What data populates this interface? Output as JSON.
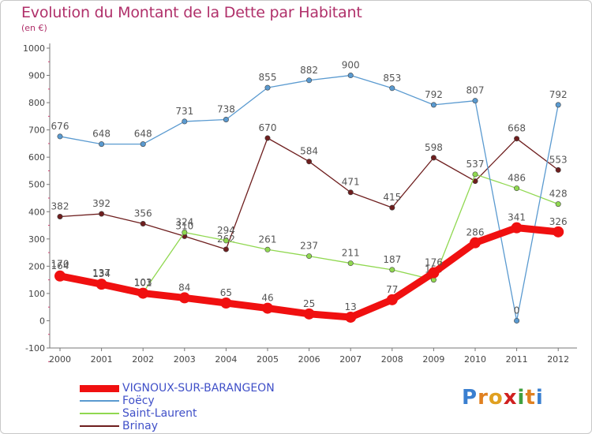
{
  "title": "Evolution du Montant de la Dette par Habitant",
  "subtitle": "(en €)",
  "logo_text": "Proxiti",
  "chart_data": {
    "type": "line",
    "title": "Evolution du Montant de la Dette par Habitant",
    "subtitle": "(en €)",
    "categories": [
      "2000",
      "2001",
      "2002",
      "2003",
      "2004",
      "2005",
      "2006",
      "2007",
      "2008",
      "2009",
      "2010",
      "2011",
      "2012"
    ],
    "ylim": [
      -100,
      1000
    ],
    "yticks": [
      -100,
      0,
      100,
      200,
      300,
      400,
      500,
      600,
      700,
      800,
      900,
      1000
    ],
    "grid": false,
    "legend": "bottom-left",
    "series": [
      {
        "name": "Brinay",
        "color": "#6e1e1e",
        "values": [
          382,
          392,
          356,
          310,
          262,
          670,
          584,
          471,
          415,
          598,
          512,
          668,
          553
        ],
        "labels": [
          "382",
          "392",
          "356",
          "310",
          "262",
          "670",
          "584",
          "471",
          "415",
          "598",
          "",
          "668",
          "553"
        ]
      },
      {
        "name": "Saint-Laurent",
        "color": "#90d850",
        "values": [
          170,
          137,
          103,
          324,
          294,
          261,
          237,
          211,
          187,
          150,
          537,
          486,
          428
        ],
        "labels": [
          "170",
          "137",
          "103",
          "324",
          "294",
          "261",
          "237",
          "211",
          "187",
          "150",
          "537",
          "486",
          "428"
        ]
      },
      {
        "name": "Foëcy",
        "color": "#5a9ad0",
        "values": [
          676,
          648,
          648,
          731,
          738,
          855,
          882,
          900,
          853,
          792,
          807,
          0,
          792
        ],
        "labels": [
          "676",
          "648",
          "648",
          "731",
          "738",
          "855",
          "882",
          "900",
          "853",
          "792",
          "807",
          "0",
          "792"
        ]
      },
      {
        "name": "VIGNOUX-SUR-BARANGEON",
        "color": "#f01010",
        "values": [
          164,
          134,
          101,
          84,
          65,
          46,
          25,
          13,
          77,
          176,
          286,
          341,
          326
        ],
        "labels": [
          "164",
          "134",
          "101",
          "84",
          "65",
          "46",
          "25",
          "13",
          "77",
          "176",
          "286",
          "341",
          "326"
        ]
      }
    ]
  }
}
